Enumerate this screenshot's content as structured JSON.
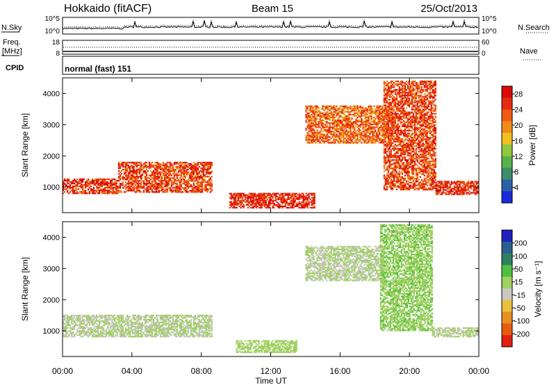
{
  "header": {
    "site": "Hokkaido (fitACF)",
    "beam": "Beam 15",
    "date": "25/Oct/2013"
  },
  "nsky": {
    "label": "N.Sky",
    "ticks_left": [
      "10^5",
      "10^0"
    ],
    "right_label": "N.Search",
    "ticks_right": [
      "10^5",
      "10^0"
    ]
  },
  "freq": {
    "label_lines": [
      "Freq.",
      "[MHz]"
    ],
    "ticks_left": [
      "18",
      "8"
    ],
    "right_label": "Nave",
    "ticks_right": [
      "60",
      "0"
    ]
  },
  "cpid": {
    "label": "CPID",
    "text": "normal (fast) 151"
  },
  "colors": {
    "power": [
      "#1a2ad8",
      "#2a62a8",
      "#3c8f6a",
      "#58b248",
      "#8fc83a",
      "#f0c020",
      "#f08c18",
      "#f05a12",
      "#e62a10",
      "#d80a08"
    ],
    "velocity": [
      "#2020c0",
      "#2a6090",
      "#2e8060",
      "#50c040",
      "#a0d060",
      "#c8c8c0",
      "#e8c040",
      "#e89020",
      "#e85a10",
      "#e02010"
    ]
  },
  "chart_data": [
    {
      "type": "heatmap",
      "name": "Power",
      "ylabel": "Slant Range [km]",
      "x_ticks": [
        "00:00",
        "04:00",
        "08:00",
        "12:00",
        "16:00",
        "20:00",
        "00:00"
      ],
      "y_ticks": [
        1000,
        2000,
        3000,
        4000
      ],
      "xlim": [
        0,
        24
      ],
      "ylim": [
        180,
        4500
      ],
      "colorbar": {
        "label": "Power [dB]",
        "ticks": [
          4,
          8,
          12,
          16,
          20,
          24,
          28
        ],
        "range": [
          0,
          30
        ]
      },
      "features": [
        {
          "t0": 0.0,
          "t1": 3.2,
          "r0": 780,
          "r1": 1250,
          "level": 25
        },
        {
          "t0": 3.2,
          "t1": 8.6,
          "r0": 820,
          "r1": 1800,
          "level": 24
        },
        {
          "t0": 9.6,
          "t1": 14.5,
          "r0": 320,
          "r1": 780,
          "level": 26
        },
        {
          "t0": 14.0,
          "t1": 19.0,
          "r0": 2400,
          "r1": 3600,
          "level": 22
        },
        {
          "t0": 18.5,
          "t1": 21.5,
          "r0": 900,
          "r1": 4400,
          "level": 24
        },
        {
          "t0": 21.5,
          "t1": 24.0,
          "r0": 750,
          "r1": 1200,
          "level": 26
        }
      ]
    },
    {
      "type": "heatmap",
      "name": "Velocity",
      "xlabel": "Time UT",
      "ylabel": "Slant Range [km]",
      "x_ticks": [
        "00:00",
        "04:00",
        "08:00",
        "12:00",
        "16:00",
        "20:00",
        "00:00"
      ],
      "y_ticks": [
        1000,
        2000,
        3000,
        4000
      ],
      "xlim": [
        0,
        24
      ],
      "ylim": [
        180,
        4500
      ],
      "colorbar": {
        "label": "Velocity [m s⁻¹]",
        "ticks": [
          200,
          100,
          50,
          15,
          -15,
          -50,
          -100,
          -200
        ],
        "range": [
          -250,
          250
        ]
      },
      "features": [
        {
          "t0": 0.0,
          "t1": 8.6,
          "r0": 800,
          "r1": 1500,
          "level": 0
        },
        {
          "t0": 10.0,
          "t1": 13.5,
          "r0": 300,
          "r1": 700,
          "level": 30
        },
        {
          "t0": 14.0,
          "t1": 18.5,
          "r0": 2600,
          "r1": 3700,
          "level": 0
        },
        {
          "t0": 18.3,
          "t1": 21.3,
          "r0": 1000,
          "r1": 4400,
          "level": 40
        },
        {
          "t0": 21.3,
          "t1": 24.0,
          "r0": 800,
          "r1": 1100,
          "level": 0
        }
      ]
    }
  ]
}
